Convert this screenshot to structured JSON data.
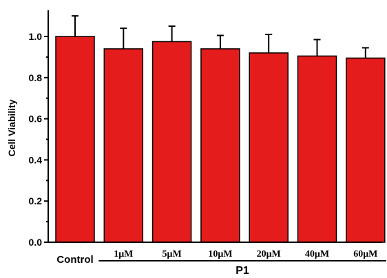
{
  "chart_data": {
    "type": "bar",
    "ylabel": "Cell Viability",
    "ylim": [
      0,
      1.1
    ],
    "yticks": [
      "0.0",
      "0.2",
      "0.4",
      "0.6",
      "0.8",
      "1.0"
    ],
    "ytick_values": [
      0,
      0.2,
      0.4,
      0.6,
      0.8,
      1.0
    ],
    "categories": [
      "Control",
      "1μM",
      "5μM",
      "10μM",
      "20μM",
      "40μM",
      "60μM"
    ],
    "values": [
      1.0,
      0.94,
      0.975,
      0.94,
      0.92,
      0.905,
      0.895
    ],
    "errors": [
      0.1,
      0.1,
      0.075,
      0.065,
      0.09,
      0.08,
      0.05
    ],
    "group_label": "P1",
    "bar_color": "#e41c1c",
    "grid": false,
    "legend": "none"
  }
}
